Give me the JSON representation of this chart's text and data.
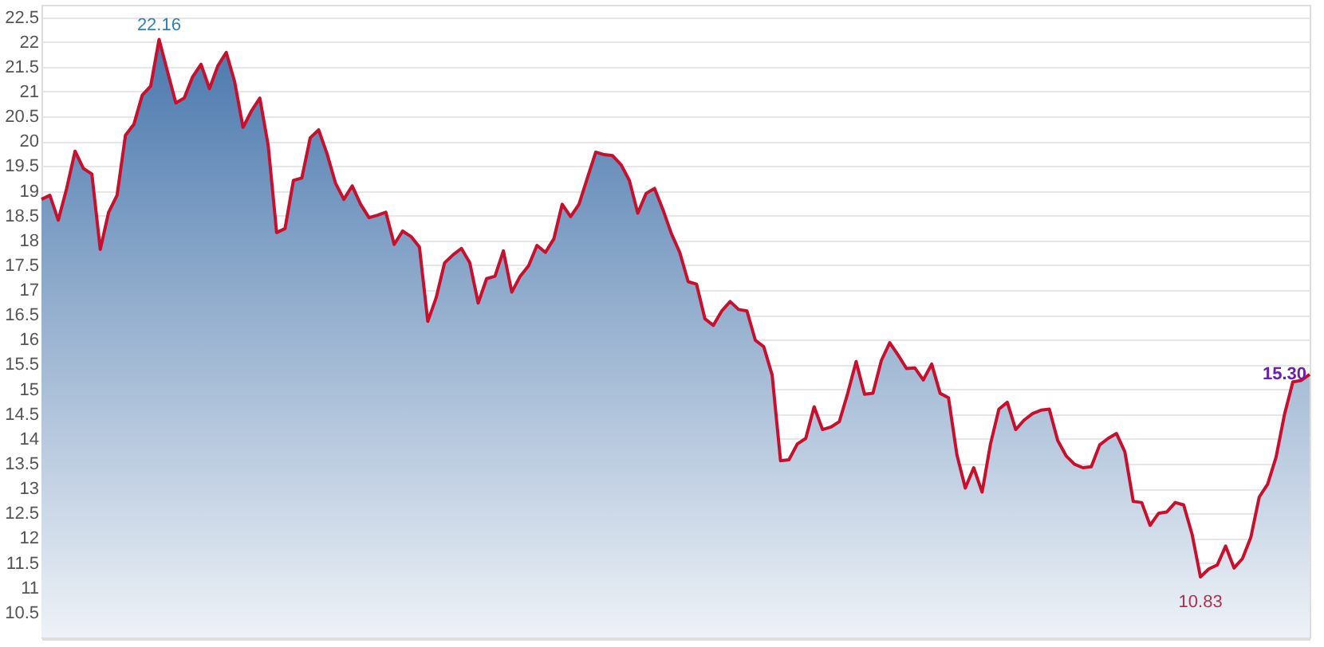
{
  "chart_data": {
    "type": "area",
    "categories": [
      null,
      null,
      null,
      null,
      null,
      null,
      null,
      null,
      null,
      null,
      null,
      null,
      null,
      null,
      null,
      null,
      null,
      null,
      null,
      null,
      null,
      null,
      null,
      null,
      null,
      null,
      null,
      null,
      null,
      null,
      null,
      null,
      null,
      null,
      null,
      null,
      null,
      null,
      null,
      null,
      null,
      null,
      null,
      null,
      null,
      null,
      null,
      null,
      null,
      null,
      null,
      null,
      null,
      null,
      null,
      null,
      null,
      null,
      null,
      null,
      null,
      null,
      null,
      null,
      null,
      null,
      null,
      null,
      null,
      null,
      null,
      null,
      null,
      null,
      null,
      null,
      null,
      null,
      null,
      null,
      null,
      null,
      null,
      null,
      null,
      null,
      null,
      null,
      null,
      null,
      null,
      null,
      null,
      null,
      null,
      null,
      null,
      null,
      null,
      null,
      null,
      null,
      null,
      null,
      null,
      null,
      null,
      null,
      null,
      null,
      null,
      null,
      null,
      null,
      null,
      null,
      null,
      null,
      null,
      null,
      null,
      null,
      null,
      null,
      null,
      null,
      null,
      null,
      null,
      null,
      null,
      null,
      null,
      null,
      null,
      null,
      null,
      null,
      null,
      null,
      null,
      null,
      null,
      null,
      null,
      null,
      null,
      null,
      null,
      null,
      null,
      null
    ],
    "series": [
      {
        "color": "#c8102e",
        "values": [
          18.83,
          18.91,
          18.41,
          19.05,
          19.8,
          19.45,
          19.34,
          17.82,
          18.57,
          18.91,
          20.12,
          20.34,
          20.93,
          21.11,
          22.05,
          21.41,
          20.77,
          20.87,
          21.3,
          21.55,
          21.06,
          21.52,
          21.79,
          21.2,
          20.28,
          20.61,
          20.87,
          19.91,
          18.16,
          18.24,
          19.21,
          19.26,
          20.07,
          20.23,
          19.75,
          19.16,
          18.83,
          19.1,
          18.73,
          18.46,
          18.51,
          18.57,
          17.92,
          18.19,
          18.08,
          17.87,
          16.37,
          16.85,
          17.55,
          17.71,
          17.84,
          17.55,
          16.74,
          17.23,
          17.28,
          17.79,
          16.96,
          17.28,
          17.49,
          17.9,
          17.76,
          18.03,
          18.73,
          18.48,
          18.73,
          19.26,
          19.78,
          19.73,
          19.71,
          19.53,
          19.21,
          18.55,
          18.95,
          19.05,
          18.62,
          18.14,
          17.76,
          17.17,
          17.12,
          16.42,
          16.29,
          16.58,
          16.77,
          16.61,
          16.58,
          15.99,
          15.86,
          15.29,
          13.56,
          13.58,
          13.9,
          14.01,
          14.65,
          14.19,
          14.24,
          14.35,
          14.92,
          15.56,
          14.9,
          14.92,
          15.58,
          15.94,
          15.69,
          15.42,
          15.43,
          15.19,
          15.51,
          14.92,
          14.83,
          13.68,
          13.01,
          13.42,
          12.93,
          13.9,
          14.6,
          14.74,
          14.19,
          14.38,
          14.51,
          14.58,
          14.6,
          13.97,
          13.66,
          13.49,
          13.42,
          13.44,
          13.88,
          14.01,
          14.11,
          13.74,
          12.74,
          12.72,
          12.26,
          12.5,
          12.53,
          12.72,
          12.67,
          12.08,
          11.22,
          11.38,
          11.46,
          11.84,
          11.4,
          11.59,
          12.02,
          12.83,
          13.09,
          13.63,
          14.49,
          15.15,
          15.18,
          15.3
        ]
      }
    ],
    "ylim": [
      10.0,
      22.75
    ],
    "yticks": [
      10.5,
      11,
      11.5,
      12,
      12.5,
      13,
      13.5,
      14,
      14.5,
      15,
      15.5,
      16,
      16.5,
      17,
      17.5,
      18,
      18.5,
      19,
      19.5,
      20,
      20.5,
      21,
      21.5,
      22,
      22.5
    ],
    "grid": "y",
    "tick_labels": "y",
    "annotations": [
      "22.16",
      "10.83",
      "15.30"
    ]
  }
}
